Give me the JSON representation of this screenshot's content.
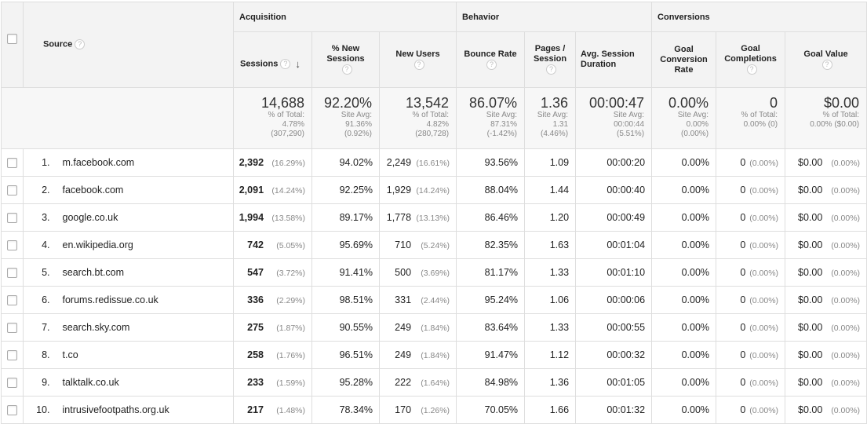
{
  "header": {
    "source_label": "Source",
    "groups": {
      "acquisition": "Acquisition",
      "behavior": "Behavior",
      "conversions": "Conversions"
    },
    "columns": {
      "sessions": "Sessions",
      "new_sessions": "% New Sessions",
      "new_users": "New Users",
      "bounce_rate": "Bounce Rate",
      "pages_session": "Pages / Session",
      "avg_duration": "Avg. Session Duration",
      "conv_rate": "Goal Conversion Rate",
      "completions": "Goal Completions",
      "goal_value": "Goal Value"
    },
    "help_glyph": "?",
    "sort_arrow": "↓"
  },
  "totals": {
    "sessions": {
      "value": "14,688",
      "l1": "% of Total:",
      "l2": "4.78%",
      "l3": "(307,290)"
    },
    "new_sessions": {
      "value": "92.20%",
      "l1": "Site Avg:",
      "l2": "91.36%",
      "l3": "(0.92%)"
    },
    "new_users": {
      "value": "13,542",
      "l1": "% of Total:",
      "l2": "4.82%",
      "l3": "(280,728)"
    },
    "bounce_rate": {
      "value": "86.07%",
      "l1": "Site Avg:",
      "l2": "87.31%",
      "l3": "(-1.42%)"
    },
    "pages_session": {
      "value": "1.36",
      "l1": "Site Avg:",
      "l2": "1.31",
      "l3": "(4.46%)"
    },
    "avg_duration": {
      "value": "00:00:47",
      "l1": "Site Avg:",
      "l2": "00:00:44",
      "l3": "(5.51%)"
    },
    "conv_rate": {
      "value": "0.00%",
      "l1": "Site Avg:",
      "l2": "0.00%",
      "l3": "(0.00%)"
    },
    "completions": {
      "value": "0",
      "l1": "% of Total:",
      "l2": "0.00% (0)",
      "l3": ""
    },
    "goal_value": {
      "value": "$0.00",
      "l1": "% of Total:",
      "l2": "0.00% ($0.00)",
      "l3": ""
    }
  },
  "rows": [
    {
      "idx": "1.",
      "source": "m.facebook.com",
      "sessions": "2,392",
      "sessions_pct": "(16.29%)",
      "new_sessions": "94.02%",
      "new_users": "2,249",
      "new_users_pct": "(16.61%)",
      "bounce": "93.56%",
      "pages": "1.09",
      "duration": "00:00:20",
      "conv": "0.00%",
      "comp": "0",
      "comp_pct": "(0.00%)",
      "value": "$0.00",
      "value_pct": "(0.00%)"
    },
    {
      "idx": "2.",
      "source": "facebook.com",
      "sessions": "2,091",
      "sessions_pct": "(14.24%)",
      "new_sessions": "92.25%",
      "new_users": "1,929",
      "new_users_pct": "(14.24%)",
      "bounce": "88.04%",
      "pages": "1.44",
      "duration": "00:00:40",
      "conv": "0.00%",
      "comp": "0",
      "comp_pct": "(0.00%)",
      "value": "$0.00",
      "value_pct": "(0.00%)"
    },
    {
      "idx": "3.",
      "source": "google.co.uk",
      "sessions": "1,994",
      "sessions_pct": "(13.58%)",
      "new_sessions": "89.17%",
      "new_users": "1,778",
      "new_users_pct": "(13.13%)",
      "bounce": "86.46%",
      "pages": "1.20",
      "duration": "00:00:49",
      "conv": "0.00%",
      "comp": "0",
      "comp_pct": "(0.00%)",
      "value": "$0.00",
      "value_pct": "(0.00%)"
    },
    {
      "idx": "4.",
      "source": "en.wikipedia.org",
      "sessions": "742",
      "sessions_pct": "(5.05%)",
      "new_sessions": "95.69%",
      "new_users": "710",
      "new_users_pct": "(5.24%)",
      "bounce": "82.35%",
      "pages": "1.63",
      "duration": "00:01:04",
      "conv": "0.00%",
      "comp": "0",
      "comp_pct": "(0.00%)",
      "value": "$0.00",
      "value_pct": "(0.00%)"
    },
    {
      "idx": "5.",
      "source": "search.bt.com",
      "sessions": "547",
      "sessions_pct": "(3.72%)",
      "new_sessions": "91.41%",
      "new_users": "500",
      "new_users_pct": "(3.69%)",
      "bounce": "81.17%",
      "pages": "1.33",
      "duration": "00:01:10",
      "conv": "0.00%",
      "comp": "0",
      "comp_pct": "(0.00%)",
      "value": "$0.00",
      "value_pct": "(0.00%)"
    },
    {
      "idx": "6.",
      "source": "forums.redissue.co.uk",
      "sessions": "336",
      "sessions_pct": "(2.29%)",
      "new_sessions": "98.51%",
      "new_users": "331",
      "new_users_pct": "(2.44%)",
      "bounce": "95.24%",
      "pages": "1.06",
      "duration": "00:00:06",
      "conv": "0.00%",
      "comp": "0",
      "comp_pct": "(0.00%)",
      "value": "$0.00",
      "value_pct": "(0.00%)"
    },
    {
      "idx": "7.",
      "source": "search.sky.com",
      "sessions": "275",
      "sessions_pct": "(1.87%)",
      "new_sessions": "90.55%",
      "new_users": "249",
      "new_users_pct": "(1.84%)",
      "bounce": "83.64%",
      "pages": "1.33",
      "duration": "00:00:55",
      "conv": "0.00%",
      "comp": "0",
      "comp_pct": "(0.00%)",
      "value": "$0.00",
      "value_pct": "(0.00%)"
    },
    {
      "idx": "8.",
      "source": "t.co",
      "sessions": "258",
      "sessions_pct": "(1.76%)",
      "new_sessions": "96.51%",
      "new_users": "249",
      "new_users_pct": "(1.84%)",
      "bounce": "91.47%",
      "pages": "1.12",
      "duration": "00:00:32",
      "conv": "0.00%",
      "comp": "0",
      "comp_pct": "(0.00%)",
      "value": "$0.00",
      "value_pct": "(0.00%)"
    },
    {
      "idx": "9.",
      "source": "talktalk.co.uk",
      "sessions": "233",
      "sessions_pct": "(1.59%)",
      "new_sessions": "95.28%",
      "new_users": "222",
      "new_users_pct": "(1.64%)",
      "bounce": "84.98%",
      "pages": "1.36",
      "duration": "00:01:05",
      "conv": "0.00%",
      "comp": "0",
      "comp_pct": "(0.00%)",
      "value": "$0.00",
      "value_pct": "(0.00%)"
    },
    {
      "idx": "10.",
      "source": "intrusivefootpaths.org.uk",
      "sessions": "217",
      "sessions_pct": "(1.48%)",
      "new_sessions": "78.34%",
      "new_users": "170",
      "new_users_pct": "(1.26%)",
      "bounce": "70.05%",
      "pages": "1.66",
      "duration": "00:01:32",
      "conv": "0.00%",
      "comp": "0",
      "comp_pct": "(0.00%)",
      "value": "$0.00",
      "value_pct": "(0.00%)"
    }
  ]
}
